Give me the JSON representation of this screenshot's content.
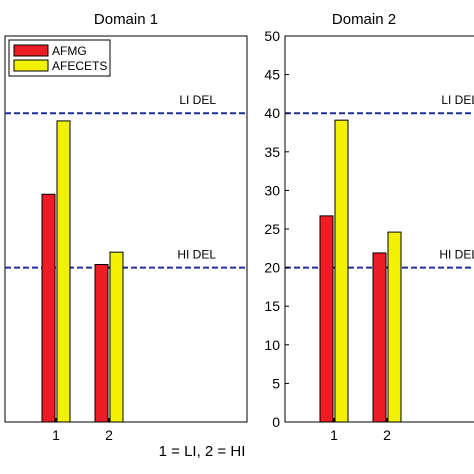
{
  "figure_caption": "1 = LI, 2 = HI",
  "chart_data": [
    {
      "type": "bar",
      "title": "Domain 1",
      "categories": [
        "1",
        "2"
      ],
      "ylim": [
        0,
        50
      ],
      "y_ticks_visible": false,
      "series": [
        {
          "name": "AFMG",
          "values": [
            29.5,
            20.4
          ],
          "color": "#ee1c25"
        },
        {
          "name": "AFECETS",
          "values": [
            39,
            22
          ],
          "color": "#f2f200"
        }
      ],
      "reference_lines": [
        {
          "label": "LI DEL",
          "value": 40,
          "color": "#1f2d9b"
        },
        {
          "label": "HI DEL",
          "value": 20,
          "color": "#1f2d9b"
        }
      ],
      "legend": {
        "position": "top-left",
        "entries": [
          "AFMG",
          "AFECETS"
        ]
      }
    },
    {
      "type": "bar",
      "title": "Domain 2",
      "categories": [
        "1",
        "2"
      ],
      "ylim": [
        0,
        50
      ],
      "y_ticks": [
        0,
        5,
        10,
        15,
        20,
        25,
        30,
        35,
        40,
        45,
        50
      ],
      "series": [
        {
          "name": "AFMG",
          "values": [
            26.7,
            21.9
          ],
          "color": "#ee1c25"
        },
        {
          "name": "AFECETS",
          "values": [
            39.1,
            24.6
          ],
          "color": "#f2f200"
        }
      ],
      "reference_lines": [
        {
          "label": "LI DEL",
          "value": 40,
          "color": "#1f2d9b"
        },
        {
          "label": "HI DEL",
          "value": 20,
          "color": "#1f2d9b"
        }
      ]
    }
  ]
}
